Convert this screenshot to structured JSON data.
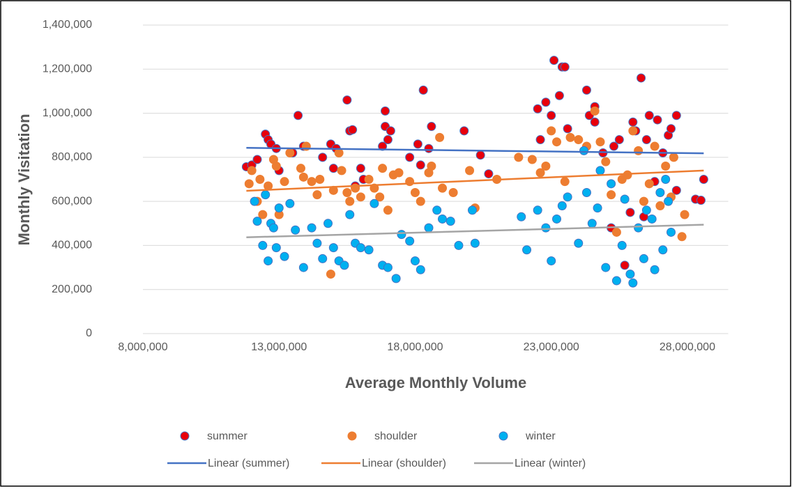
{
  "chart_data": {
    "type": "scatter",
    "xlabel": "Average Monthly Volume",
    "ylabel": "Monthly Visitation",
    "xlim": [
      8000000,
      29500000
    ],
    "xticks": [
      {
        "value": 8000000,
        "label": "8,000,000"
      },
      {
        "value": 13000000,
        "label": "13,000,000"
      },
      {
        "value": 18000000,
        "label": "18,000,000"
      },
      {
        "value": 23000000,
        "label": "23,000,000"
      },
      {
        "value": 28000000,
        "label": "28,000,000"
      }
    ],
    "ylim": [
      0,
      1400000
    ],
    "yticks": [
      0,
      {
        "value": 200000,
        "label": "200,000"
      },
      {
        "value": 400000,
        "label": "400,000"
      },
      {
        "value": 600000,
        "label": "600,000"
      },
      {
        "value": 800000,
        "label": "800,000"
      },
      {
        "value": 1000000,
        "label": "1,000,000"
      },
      {
        "value": 1200000,
        "label": "1,200,000"
      },
      {
        "value": 1400000,
        "label": "1,400,000"
      }
    ],
    "grid": true,
    "series": [
      {
        "name": "summer",
        "color": "#e8000b",
        "edge": "#4472c4",
        "x": [
          11800000,
          12000000,
          12200000,
          12500000,
          12600000,
          12700000,
          12900000,
          13000000,
          13500000,
          13700000,
          13900000,
          14600000,
          14900000,
          15000000,
          15100000,
          15500000,
          15600000,
          15700000,
          15800000,
          16000000,
          16100000,
          16800000,
          16900000,
          16900000,
          17000000,
          17100000,
          17800000,
          18100000,
          18200000,
          18300000,
          18500000,
          18600000,
          19800000,
          20400000,
          20700000,
          22500000,
          22600000,
          22800000,
          23000000,
          23100000,
          23300000,
          23400000,
          23500000,
          23600000,
          24300000,
          24400000,
          24600000,
          24600000,
          24900000,
          25200000,
          25300000,
          25500000,
          25700000,
          25900000,
          26000000,
          26100000,
          26300000,
          26400000,
          26500000,
          26600000,
          26800000,
          26900000,
          27100000,
          27300000,
          27400000,
          27600000,
          27600000,
          28300000,
          28500000,
          28600000
        ],
        "values": [
          757000,
          765000,
          790000,
          905000,
          880000,
          860000,
          840000,
          740000,
          820000,
          990000,
          850000,
          800000,
          860000,
          750000,
          840000,
          1060000,
          920000,
          925000,
          670000,
          750000,
          700000,
          850000,
          1010000,
          940000,
          880000,
          920000,
          800000,
          860000,
          765000,
          1105000,
          840000,
          940000,
          920000,
          810000,
          725000,
          1020000,
          880000,
          1050000,
          990000,
          1240000,
          1080000,
          1210000,
          1210000,
          930000,
          1105000,
          990000,
          1030000,
          960000,
          820000,
          480000,
          850000,
          880000,
          310000,
          550000,
          960000,
          920000,
          1160000,
          530000,
          880000,
          990000,
          690000,
          970000,
          820000,
          900000,
          930000,
          990000,
          650000,
          610000,
          605000,
          700000
        ]
      },
      {
        "name": "shoulder",
        "color": "#ed7d31",
        "edge": "#ed7d31",
        "x": [
          11900000,
          12000000,
          12200000,
          12300000,
          12400000,
          12600000,
          12800000,
          12900000,
          13000000,
          13200000,
          13400000,
          13800000,
          13900000,
          14000000,
          14200000,
          14400000,
          14500000,
          14900000,
          15000000,
          15200000,
          15300000,
          15500000,
          15600000,
          15800000,
          16000000,
          16300000,
          16500000,
          16700000,
          16800000,
          17000000,
          17200000,
          17400000,
          17800000,
          18000000,
          18200000,
          18500000,
          18600000,
          18900000,
          19000000,
          19400000,
          20000000,
          20200000,
          21000000,
          21800000,
          22300000,
          22600000,
          22800000,
          23000000,
          23200000,
          23500000,
          23700000,
          24000000,
          24300000,
          24600000,
          24800000,
          25000000,
          25200000,
          25400000,
          25600000,
          25800000,
          26000000,
          26200000,
          26400000,
          26600000,
          26800000,
          27000000,
          27200000,
          27400000,
          27500000,
          27800000,
          27900000
        ],
        "values": [
          680000,
          740000,
          600000,
          700000,
          540000,
          670000,
          790000,
          760000,
          540000,
          690000,
          820000,
          750000,
          710000,
          850000,
          690000,
          630000,
          700000,
          270000,
          650000,
          820000,
          740000,
          640000,
          600000,
          660000,
          620000,
          700000,
          660000,
          620000,
          750000,
          560000,
          720000,
          730000,
          690000,
          640000,
          600000,
          730000,
          760000,
          890000,
          660000,
          640000,
          740000,
          570000,
          700000,
          800000,
          790000,
          730000,
          760000,
          920000,
          870000,
          690000,
          890000,
          880000,
          850000,
          1010000,
          870000,
          780000,
          630000,
          460000,
          700000,
          720000,
          920000,
          830000,
          600000,
          680000,
          850000,
          580000,
          760000,
          620000,
          800000,
          440000,
          540000
        ]
      },
      {
        "name": "winter",
        "color": "#00b0f0",
        "edge": "#4472c4",
        "x": [
          12100000,
          12200000,
          12400000,
          12500000,
          12600000,
          12700000,
          12800000,
          12900000,
          13000000,
          13200000,
          13400000,
          13600000,
          13900000,
          14200000,
          14400000,
          14600000,
          14800000,
          15000000,
          15200000,
          15400000,
          15600000,
          15800000,
          16000000,
          16300000,
          16500000,
          16800000,
          17000000,
          17300000,
          17500000,
          17800000,
          18000000,
          18200000,
          18500000,
          18800000,
          19000000,
          19300000,
          19600000,
          20100000,
          20200000,
          21900000,
          22100000,
          22500000,
          22800000,
          23000000,
          23200000,
          23400000,
          23600000,
          24000000,
          24200000,
          24300000,
          24500000,
          24700000,
          24800000,
          25000000,
          25200000,
          25400000,
          25600000,
          25700000,
          25900000,
          26000000,
          26200000,
          26400000,
          26500000,
          26700000,
          26800000,
          27000000,
          27100000,
          27200000,
          27300000,
          27400000
        ],
        "values": [
          600000,
          510000,
          400000,
          630000,
          330000,
          500000,
          480000,
          390000,
          570000,
          350000,
          590000,
          470000,
          300000,
          480000,
          410000,
          340000,
          500000,
          390000,
          330000,
          310000,
          540000,
          410000,
          390000,
          380000,
          590000,
          310000,
          300000,
          250000,
          450000,
          420000,
          330000,
          290000,
          480000,
          560000,
          520000,
          510000,
          400000,
          560000,
          410000,
          530000,
          380000,
          560000,
          480000,
          330000,
          520000,
          580000,
          620000,
          410000,
          830000,
          640000,
          500000,
          570000,
          740000,
          300000,
          680000,
          240000,
          400000,
          610000,
          270000,
          230000,
          480000,
          340000,
          560000,
          520000,
          290000,
          640000,
          380000,
          700000,
          600000,
          460000
        ]
      }
    ],
    "trendlines": [
      {
        "name": "Linear (summer)",
        "color": "#4472c4",
        "x": [
          11800000,
          28600000
        ],
        "values": [
          843000,
          818000
        ]
      },
      {
        "name": "Linear (shoulder)",
        "color": "#ed7d31",
        "x": [
          11800000,
          28600000
        ],
        "values": [
          648000,
          740000
        ]
      },
      {
        "name": "Linear (winter)",
        "color": "#a5a5a5",
        "x": [
          11800000,
          28600000
        ],
        "values": [
          437000,
          494000
        ]
      }
    ]
  }
}
